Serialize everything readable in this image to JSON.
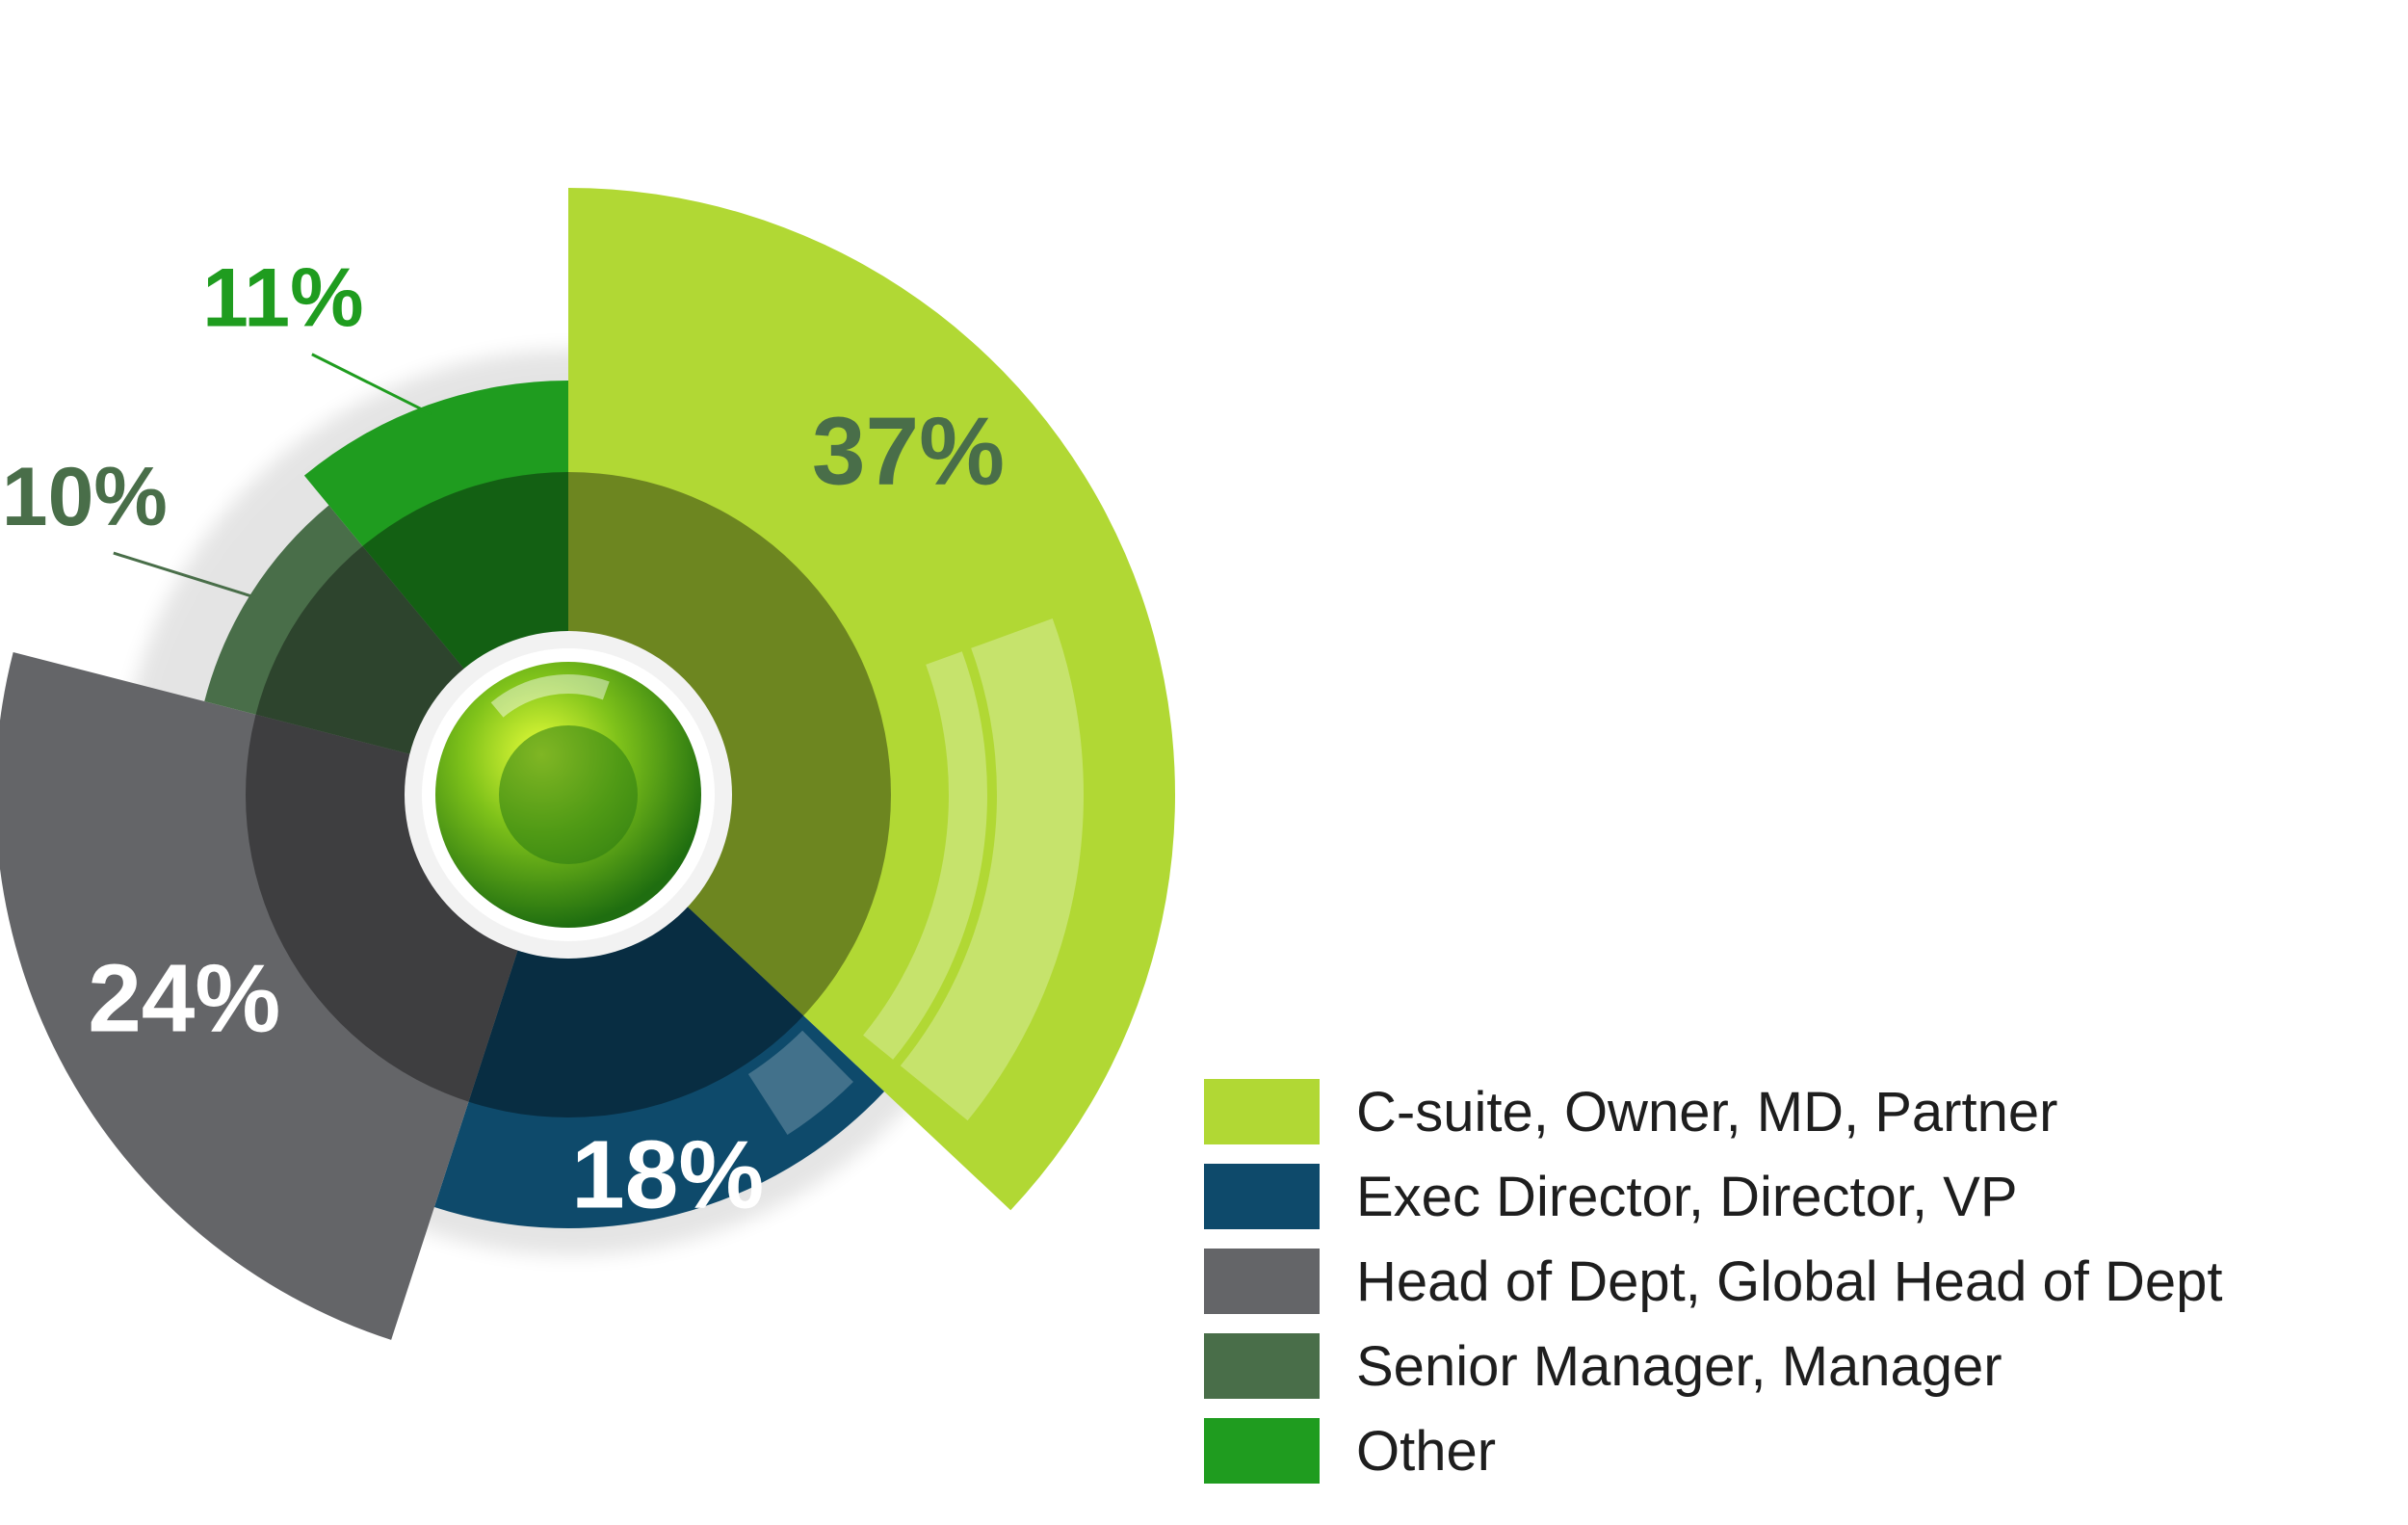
{
  "chart_data": {
    "type": "pie",
    "style": "radial donut with varying outer radius",
    "title": "",
    "unit": "%",
    "slices": [
      {
        "label": "C-suite, Owner, MD, Partner",
        "value": 37,
        "color": "#b1d834"
      },
      {
        "label": "Exec Director, Director, VP",
        "value": 18,
        "color": "#0e4a6b"
      },
      {
        "label": "Head of Dept, Global Head of Dept",
        "value": 24,
        "color": "#646568"
      },
      {
        "label": "Senior Manager, Manager",
        "value": 10,
        "color": "#496e49"
      },
      {
        "label": "Other",
        "value": 11,
        "color": "#1f9c1f"
      }
    ],
    "data_labels": [
      "37%",
      "18%",
      "24%",
      "10%",
      "11%"
    ],
    "legend_position": "bottom-right"
  }
}
